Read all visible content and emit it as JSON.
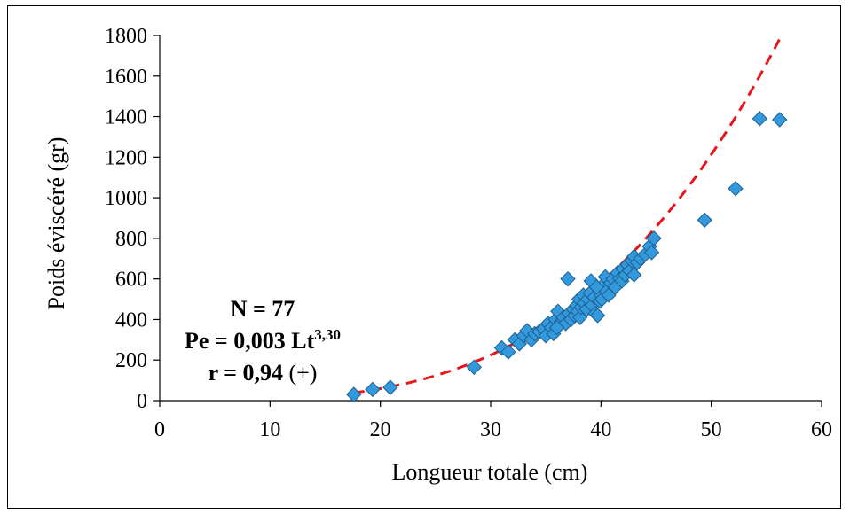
{
  "chart_data": {
    "type": "scatter",
    "xlabel": "Longueur totale (cm)",
    "ylabel": "Poids éviscéré (gr)",
    "xlim": [
      0,
      60
    ],
    "ylim": [
      0,
      1800
    ],
    "x_ticks": [
      0,
      10,
      20,
      30,
      40,
      50,
      60
    ],
    "y_ticks": [
      0,
      200,
      400,
      600,
      800,
      1000,
      1200,
      1400,
      1600,
      1800
    ],
    "x_tick_labels": [
      "0",
      "10",
      "20",
      "30",
      "40",
      "50",
      "60"
    ],
    "y_tick_labels": [
      "0",
      "200",
      "400",
      "600",
      "800",
      "1000",
      "1200",
      "1400",
      "1600",
      "1800"
    ],
    "grid": false,
    "marker_color": "#3399dd",
    "marker_edge_color": "#1f5f8f",
    "fit_color": "#e8141b",
    "fit": {
      "a": 0.003,
      "b": 3.3,
      "x_range": [
        17.6,
        56.3
      ],
      "style": "dashed"
    },
    "annotation": {
      "n_label": "N = 77",
      "eq_prefix": "Pe = 0,003 Lt",
      "eq_exponent": "3,30",
      "r_label": "r = 0,94",
      "r_suffix": " (+)"
    },
    "points": [
      {
        "x": 17.6,
        "y": 30
      },
      {
        "x": 19.3,
        "y": 55
      },
      {
        "x": 20.9,
        "y": 65
      },
      {
        "x": 28.5,
        "y": 165
      },
      {
        "x": 31.0,
        "y": 260
      },
      {
        "x": 31.6,
        "y": 240
      },
      {
        "x": 32.2,
        "y": 300
      },
      {
        "x": 32.6,
        "y": 280
      },
      {
        "x": 33.0,
        "y": 320
      },
      {
        "x": 33.3,
        "y": 345
      },
      {
        "x": 33.7,
        "y": 300
      },
      {
        "x": 34.0,
        "y": 330
      },
      {
        "x": 34.4,
        "y": 340
      },
      {
        "x": 34.8,
        "y": 355
      },
      {
        "x": 35.0,
        "y": 320
      },
      {
        "x": 35.2,
        "y": 380
      },
      {
        "x": 35.5,
        "y": 360
      },
      {
        "x": 35.7,
        "y": 330
      },
      {
        "x": 35.9,
        "y": 400
      },
      {
        "x": 36.1,
        "y": 440
      },
      {
        "x": 36.2,
        "y": 370
      },
      {
        "x": 36.4,
        "y": 390
      },
      {
        "x": 36.6,
        "y": 410
      },
      {
        "x": 36.8,
        "y": 380
      },
      {
        "x": 37.0,
        "y": 600
      },
      {
        "x": 37.1,
        "y": 430
      },
      {
        "x": 37.3,
        "y": 400
      },
      {
        "x": 37.5,
        "y": 450
      },
      {
        "x": 37.6,
        "y": 420
      },
      {
        "x": 37.8,
        "y": 470
      },
      {
        "x": 37.9,
        "y": 440
      },
      {
        "x": 38.0,
        "y": 500
      },
      {
        "x": 38.1,
        "y": 410
      },
      {
        "x": 38.2,
        "y": 460
      },
      {
        "x": 38.4,
        "y": 520
      },
      {
        "x": 38.5,
        "y": 480
      },
      {
        "x": 38.7,
        "y": 450
      },
      {
        "x": 38.8,
        "y": 500
      },
      {
        "x": 39.0,
        "y": 530
      },
      {
        "x": 39.1,
        "y": 590
      },
      {
        "x": 39.2,
        "y": 470
      },
      {
        "x": 39.4,
        "y": 510
      },
      {
        "x": 39.5,
        "y": 430
      },
      {
        "x": 39.7,
        "y": 420
      },
      {
        "x": 39.8,
        "y": 550
      },
      {
        "x": 39.9,
        "y": 490
      },
      {
        "x": 40.0,
        "y": 520
      },
      {
        "x": 40.1,
        "y": 500
      },
      {
        "x": 40.2,
        "y": 570
      },
      {
        "x": 40.4,
        "y": 610
      },
      {
        "x": 40.5,
        "y": 540
      },
      {
        "x": 40.7,
        "y": 520
      },
      {
        "x": 40.9,
        "y": 580
      },
      {
        "x": 41.1,
        "y": 600
      },
      {
        "x": 41.3,
        "y": 560
      },
      {
        "x": 41.5,
        "y": 630
      },
      {
        "x": 41.7,
        "y": 600
      },
      {
        "x": 41.9,
        "y": 590
      },
      {
        "x": 42.0,
        "y": 650
      },
      {
        "x": 42.2,
        "y": 620
      },
      {
        "x": 42.4,
        "y": 670
      },
      {
        "x": 42.6,
        "y": 640
      },
      {
        "x": 42.8,
        "y": 690
      },
      {
        "x": 43.0,
        "y": 710
      },
      {
        "x": 43.0,
        "y": 620
      },
      {
        "x": 43.3,
        "y": 680
      },
      {
        "x": 43.6,
        "y": 700
      },
      {
        "x": 44.0,
        "y": 720
      },
      {
        "x": 44.4,
        "y": 760
      },
      {
        "x": 44.6,
        "y": 730
      },
      {
        "x": 44.8,
        "y": 800
      },
      {
        "x": 39.6,
        "y": 560
      },
      {
        "x": 49.4,
        "y": 890
      },
      {
        "x": 52.2,
        "y": 1045
      },
      {
        "x": 54.4,
        "y": 1390
      },
      {
        "x": 56.2,
        "y": 1385
      },
      {
        "x": 36.0,
        "y": 360
      }
    ]
  }
}
